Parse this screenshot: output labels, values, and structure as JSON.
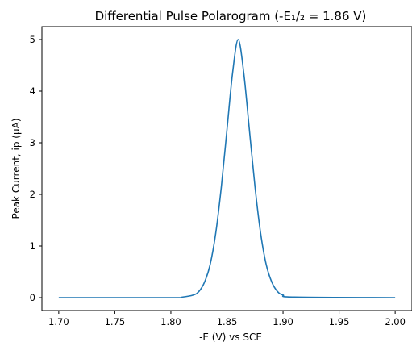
{
  "chart_data": {
    "type": "line",
    "title": "Differential Pulse Polarogram (-E₁/₂ = 1.86 V)",
    "xlabel": "-E (V) vs SCE",
    "ylabel": "Peak Current, ip (μA)",
    "xlim": [
      1.685,
      2.015
    ],
    "ylim": [
      -0.25,
      5.25
    ],
    "x_ticks": [
      1.7,
      1.75,
      1.8,
      1.85,
      1.9,
      1.95,
      2.0
    ],
    "x_tick_labels": [
      "1.70",
      "1.75",
      "1.80",
      "1.85",
      "1.90",
      "1.95",
      "2.00"
    ],
    "y_ticks": [
      0,
      1,
      2,
      3,
      4,
      5
    ],
    "y_tick_labels": [
      "0",
      "1",
      "2",
      "3",
      "4",
      "5"
    ],
    "grid": false,
    "series": [
      {
        "color": "#1f77b4",
        "x": [
          1.7,
          1.8,
          1.81,
          1.82,
          1.825,
          1.83,
          1.835,
          1.84,
          1.845,
          1.85,
          1.855,
          1.86,
          1.865,
          1.87,
          1.875,
          1.88,
          1.885,
          1.89,
          1.895,
          1.9,
          1.91,
          2.0
        ],
        "y": [
          0.0,
          0.0,
          0.01,
          0.05,
          0.12,
          0.3,
          0.64,
          1.25,
          2.15,
          3.25,
          4.35,
          5.0,
          4.35,
          3.25,
          2.15,
          1.25,
          0.64,
          0.3,
          0.12,
          0.05,
          0.01,
          0.0
        ]
      }
    ]
  }
}
